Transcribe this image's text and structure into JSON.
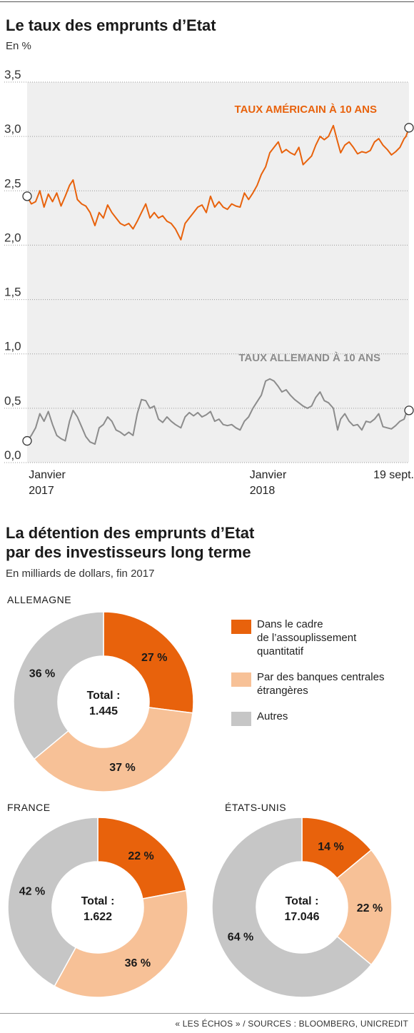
{
  "chart1": {
    "title": "Le taux des emprunts d’Etat",
    "subtitle": "En %"
  },
  "chart2": {
    "title_line1": "La détention des emprunts d’Etat",
    "title_line2": "par des investisseurs long terme",
    "subtitle": "En milliards de dollars, fin 2017",
    "legend": [
      {
        "label_lines": [
          "Dans le cadre",
          "de l’assouplissement",
          "quantitatif"
        ],
        "color": "#e8620c"
      },
      {
        "label_lines": [
          "Par des banques centrales",
          "étrangères"
        ],
        "color": "#f7c197"
      },
      {
        "label_lines": [
          "Autres"
        ],
        "color": "#c6c6c6"
      }
    ]
  },
  "source": "« LES ÉCHOS » / SOURCES : BLOOMBERG, UNICREDIT",
  "chart_data": [
    {
      "type": "line",
      "title": "Le taux des emprunts d’Etat",
      "ylabel": "En %",
      "ylim": [
        0,
        3.5
      ],
      "yticks": [
        "0,0",
        "0,5",
        "1,0",
        "1,5",
        "2,0",
        "2,5",
        "3,0",
        "3,5"
      ],
      "xlim": [
        "2016-12-27",
        "2018-09-19"
      ],
      "xticks": [
        {
          "date": "2017-01-01",
          "lines": [
            "Janvier",
            "2017"
          ]
        },
        {
          "date": "2018-01-01",
          "lines": [
            "Janvier",
            "2018"
          ]
        },
        {
          "date": "2018-09-19",
          "lines": [
            "19 sept."
          ]
        }
      ],
      "grid": "horizontal",
      "series": [
        {
          "name": "TAUX AMÉRICAIN À 10 ANS",
          "color": "#e8620c",
          "x": [
            "2016-12-27",
            "2017-01-03",
            "2017-01-10",
            "2017-01-17",
            "2017-01-24",
            "2017-01-31",
            "2017-02-07",
            "2017-02-14",
            "2017-02-21",
            "2017-02-28",
            "2017-03-07",
            "2017-03-13",
            "2017-03-20",
            "2017-03-27",
            "2017-04-03",
            "2017-04-10",
            "2017-04-18",
            "2017-04-25",
            "2017-05-02",
            "2017-05-09",
            "2017-05-16",
            "2017-05-23",
            "2017-05-30",
            "2017-06-06",
            "2017-06-13",
            "2017-06-20",
            "2017-06-27",
            "2017-07-04",
            "2017-07-11",
            "2017-07-18",
            "2017-07-25",
            "2017-08-01",
            "2017-08-08",
            "2017-08-15",
            "2017-08-22",
            "2017-08-29",
            "2017-09-07",
            "2017-09-14",
            "2017-09-21",
            "2017-09-28",
            "2017-10-05",
            "2017-10-12",
            "2017-10-19",
            "2017-10-26",
            "2017-11-02",
            "2017-11-09",
            "2017-11-16",
            "2017-11-23",
            "2017-11-30",
            "2017-12-07",
            "2017-12-14",
            "2017-12-21",
            "2017-12-28",
            "2018-01-04",
            "2018-01-11",
            "2018-01-18",
            "2018-01-25",
            "2018-02-01",
            "2018-02-08",
            "2018-02-15",
            "2018-02-21",
            "2018-02-28",
            "2018-03-07",
            "2018-03-14",
            "2018-03-21",
            "2018-03-28",
            "2018-04-04",
            "2018-04-11",
            "2018-04-18",
            "2018-04-25",
            "2018-05-02",
            "2018-05-09",
            "2018-05-17",
            "2018-05-24",
            "2018-05-29",
            "2018-06-05",
            "2018-06-12",
            "2018-06-19",
            "2018-06-26",
            "2018-07-03",
            "2018-07-10",
            "2018-07-17",
            "2018-07-24",
            "2018-07-31",
            "2018-08-07",
            "2018-08-14",
            "2018-08-21",
            "2018-08-28",
            "2018-09-04",
            "2018-09-11",
            "2018-09-14",
            "2018-09-19"
          ],
          "values": [
            2.45,
            2.38,
            2.4,
            2.5,
            2.35,
            2.47,
            2.4,
            2.48,
            2.36,
            2.45,
            2.55,
            2.6,
            2.42,
            2.38,
            2.36,
            2.3,
            2.18,
            2.3,
            2.25,
            2.37,
            2.3,
            2.25,
            2.2,
            2.18,
            2.2,
            2.15,
            2.22,
            2.3,
            2.38,
            2.25,
            2.3,
            2.25,
            2.27,
            2.22,
            2.2,
            2.15,
            2.05,
            2.2,
            2.25,
            2.3,
            2.35,
            2.37,
            2.3,
            2.45,
            2.35,
            2.4,
            2.35,
            2.33,
            2.38,
            2.36,
            2.35,
            2.48,
            2.42,
            2.48,
            2.55,
            2.65,
            2.72,
            2.85,
            2.9,
            2.95,
            2.85,
            2.88,
            2.85,
            2.83,
            2.9,
            2.74,
            2.78,
            2.82,
            2.92,
            3.0,
            2.97,
            3.0,
            3.1,
            2.95,
            2.85,
            2.92,
            2.95,
            2.9,
            2.84,
            2.86,
            2.85,
            2.87,
            2.95,
            2.98,
            2.92,
            2.88,
            2.83,
            2.86,
            2.9,
            2.98,
            3.0,
            3.08
          ]
        },
        {
          "name": "TAUX ALLEMAND À 10 ANS",
          "color": "#8c8c8c",
          "x": [
            "2016-12-27",
            "2017-01-03",
            "2017-01-10",
            "2017-01-17",
            "2017-01-24",
            "2017-01-31",
            "2017-02-07",
            "2017-02-14",
            "2017-02-21",
            "2017-02-28",
            "2017-03-07",
            "2017-03-13",
            "2017-03-20",
            "2017-03-27",
            "2017-04-03",
            "2017-04-10",
            "2017-04-18",
            "2017-04-25",
            "2017-05-02",
            "2017-05-09",
            "2017-05-16",
            "2017-05-23",
            "2017-05-30",
            "2017-06-06",
            "2017-06-13",
            "2017-06-20",
            "2017-06-27",
            "2017-07-04",
            "2017-07-11",
            "2017-07-18",
            "2017-07-25",
            "2017-08-01",
            "2017-08-08",
            "2017-08-15",
            "2017-08-22",
            "2017-08-29",
            "2017-09-07",
            "2017-09-14",
            "2017-09-21",
            "2017-09-28",
            "2017-10-05",
            "2017-10-12",
            "2017-10-19",
            "2017-10-26",
            "2017-11-02",
            "2017-11-09",
            "2017-11-16",
            "2017-11-23",
            "2017-11-30",
            "2017-12-07",
            "2017-12-14",
            "2017-12-21",
            "2017-12-28",
            "2018-01-04",
            "2018-01-11",
            "2018-01-18",
            "2018-01-25",
            "2018-02-01",
            "2018-02-08",
            "2018-02-15",
            "2018-02-21",
            "2018-02-28",
            "2018-03-07",
            "2018-03-14",
            "2018-03-21",
            "2018-03-28",
            "2018-04-04",
            "2018-04-11",
            "2018-04-18",
            "2018-04-25",
            "2018-05-02",
            "2018-05-09",
            "2018-05-17",
            "2018-05-24",
            "2018-05-29",
            "2018-06-05",
            "2018-06-12",
            "2018-06-19",
            "2018-06-26",
            "2018-07-03",
            "2018-07-10",
            "2018-07-17",
            "2018-07-24",
            "2018-07-31",
            "2018-08-07",
            "2018-08-14",
            "2018-08-21",
            "2018-08-28",
            "2018-09-04",
            "2018-09-11",
            "2018-09-14",
            "2018-09-19"
          ],
          "values": [
            0.2,
            0.25,
            0.32,
            0.45,
            0.38,
            0.47,
            0.35,
            0.25,
            0.22,
            0.2,
            0.38,
            0.48,
            0.42,
            0.33,
            0.24,
            0.19,
            0.17,
            0.32,
            0.35,
            0.42,
            0.38,
            0.3,
            0.28,
            0.25,
            0.28,
            0.25,
            0.45,
            0.58,
            0.57,
            0.5,
            0.52,
            0.4,
            0.37,
            0.42,
            0.38,
            0.35,
            0.32,
            0.42,
            0.46,
            0.43,
            0.46,
            0.42,
            0.44,
            0.47,
            0.38,
            0.4,
            0.35,
            0.34,
            0.35,
            0.32,
            0.3,
            0.38,
            0.42,
            0.5,
            0.56,
            0.62,
            0.75,
            0.77,
            0.75,
            0.7,
            0.65,
            0.67,
            0.62,
            0.58,
            0.55,
            0.52,
            0.5,
            0.52,
            0.6,
            0.65,
            0.57,
            0.55,
            0.5,
            0.3,
            0.4,
            0.45,
            0.38,
            0.34,
            0.35,
            0.3,
            0.38,
            0.37,
            0.4,
            0.45,
            0.33,
            0.32,
            0.31,
            0.34,
            0.38,
            0.4,
            0.45,
            0.48
          ]
        }
      ]
    },
    {
      "type": "pie",
      "title": "ALLEMAGNE",
      "center_label": [
        "Total :",
        "1.445"
      ],
      "categories": [
        "Dans le cadre de l’assouplissement quantitatif",
        "Par des banques centrales étrangères",
        "Autres"
      ],
      "values": [
        27,
        37,
        36
      ],
      "labels": [
        "27 %",
        "37 %",
        "36 %"
      ]
    },
    {
      "type": "pie",
      "title": "FRANCE",
      "center_label": [
        "Total :",
        "1.622"
      ],
      "categories": [
        "Dans le cadre de l’assouplissement quantitatif",
        "Par des banques centrales étrangères",
        "Autres"
      ],
      "values": [
        22,
        36,
        42
      ],
      "labels": [
        "22 %",
        "36 %",
        "42 %"
      ]
    },
    {
      "type": "pie",
      "title": "ÉTATS-UNIS",
      "center_label": [
        "Total :",
        "17.046"
      ],
      "categories": [
        "Dans le cadre de l’assouplissement quantitatif",
        "Par des banques centrales étrangères",
        "Autres"
      ],
      "values": [
        14,
        22,
        64
      ],
      "labels": [
        "14 %",
        "22 %",
        "64 %"
      ]
    }
  ]
}
